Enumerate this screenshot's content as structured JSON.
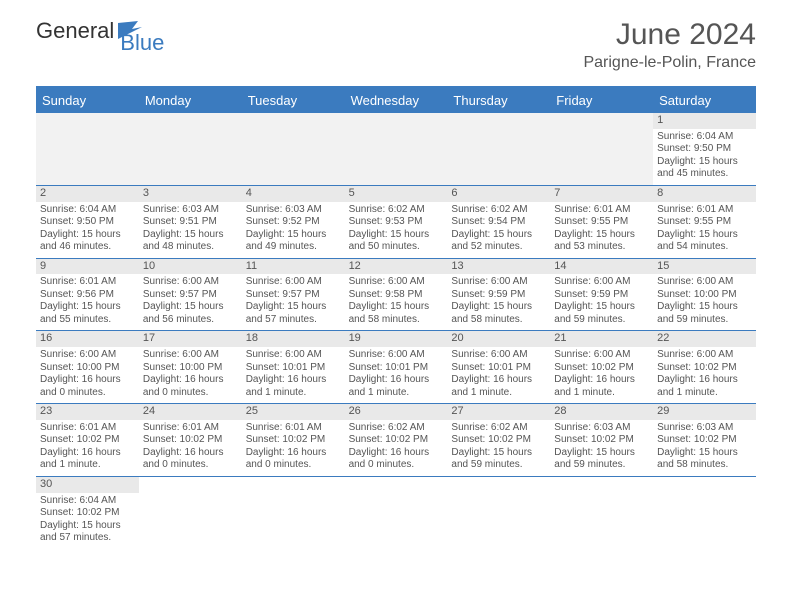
{
  "logo": {
    "part1": "General",
    "part2": "Blue"
  },
  "title": "June 2024",
  "subtitle": "Parigne-le-Polin, France",
  "colors": {
    "header_blue": "#3b7bbf",
    "row_alt": "#e9e9e9",
    "empty_cell": "#f2f2f2",
    "text": "#555"
  },
  "days_of_week": [
    "Sunday",
    "Monday",
    "Tuesday",
    "Wednesday",
    "Thursday",
    "Friday",
    "Saturday"
  ],
  "weeks": [
    [
      {
        "empty": true
      },
      {
        "empty": true
      },
      {
        "empty": true
      },
      {
        "empty": true
      },
      {
        "empty": true
      },
      {
        "empty": true
      },
      {
        "day": "1",
        "sunrise": "Sunrise: 6:04 AM",
        "sunset": "Sunset: 9:50 PM",
        "daylight1": "Daylight: 15 hours",
        "daylight2": "and 45 minutes."
      }
    ],
    [
      {
        "day": "2",
        "sunrise": "Sunrise: 6:04 AM",
        "sunset": "Sunset: 9:50 PM",
        "daylight1": "Daylight: 15 hours",
        "daylight2": "and 46 minutes."
      },
      {
        "day": "3",
        "sunrise": "Sunrise: 6:03 AM",
        "sunset": "Sunset: 9:51 PM",
        "daylight1": "Daylight: 15 hours",
        "daylight2": "and 48 minutes."
      },
      {
        "day": "4",
        "sunrise": "Sunrise: 6:03 AM",
        "sunset": "Sunset: 9:52 PM",
        "daylight1": "Daylight: 15 hours",
        "daylight2": "and 49 minutes."
      },
      {
        "day": "5",
        "sunrise": "Sunrise: 6:02 AM",
        "sunset": "Sunset: 9:53 PM",
        "daylight1": "Daylight: 15 hours",
        "daylight2": "and 50 minutes."
      },
      {
        "day": "6",
        "sunrise": "Sunrise: 6:02 AM",
        "sunset": "Sunset: 9:54 PM",
        "daylight1": "Daylight: 15 hours",
        "daylight2": "and 52 minutes."
      },
      {
        "day": "7",
        "sunrise": "Sunrise: 6:01 AM",
        "sunset": "Sunset: 9:55 PM",
        "daylight1": "Daylight: 15 hours",
        "daylight2": "and 53 minutes."
      },
      {
        "day": "8",
        "sunrise": "Sunrise: 6:01 AM",
        "sunset": "Sunset: 9:55 PM",
        "daylight1": "Daylight: 15 hours",
        "daylight2": "and 54 minutes."
      }
    ],
    [
      {
        "day": "9",
        "sunrise": "Sunrise: 6:01 AM",
        "sunset": "Sunset: 9:56 PM",
        "daylight1": "Daylight: 15 hours",
        "daylight2": "and 55 minutes."
      },
      {
        "day": "10",
        "sunrise": "Sunrise: 6:00 AM",
        "sunset": "Sunset: 9:57 PM",
        "daylight1": "Daylight: 15 hours",
        "daylight2": "and 56 minutes."
      },
      {
        "day": "11",
        "sunrise": "Sunrise: 6:00 AM",
        "sunset": "Sunset: 9:57 PM",
        "daylight1": "Daylight: 15 hours",
        "daylight2": "and 57 minutes."
      },
      {
        "day": "12",
        "sunrise": "Sunrise: 6:00 AM",
        "sunset": "Sunset: 9:58 PM",
        "daylight1": "Daylight: 15 hours",
        "daylight2": "and 58 minutes."
      },
      {
        "day": "13",
        "sunrise": "Sunrise: 6:00 AM",
        "sunset": "Sunset: 9:59 PM",
        "daylight1": "Daylight: 15 hours",
        "daylight2": "and 58 minutes."
      },
      {
        "day": "14",
        "sunrise": "Sunrise: 6:00 AM",
        "sunset": "Sunset: 9:59 PM",
        "daylight1": "Daylight: 15 hours",
        "daylight2": "and 59 minutes."
      },
      {
        "day": "15",
        "sunrise": "Sunrise: 6:00 AM",
        "sunset": "Sunset: 10:00 PM",
        "daylight1": "Daylight: 15 hours",
        "daylight2": "and 59 minutes."
      }
    ],
    [
      {
        "day": "16",
        "sunrise": "Sunrise: 6:00 AM",
        "sunset": "Sunset: 10:00 PM",
        "daylight1": "Daylight: 16 hours",
        "daylight2": "and 0 minutes."
      },
      {
        "day": "17",
        "sunrise": "Sunrise: 6:00 AM",
        "sunset": "Sunset: 10:00 PM",
        "daylight1": "Daylight: 16 hours",
        "daylight2": "and 0 minutes."
      },
      {
        "day": "18",
        "sunrise": "Sunrise: 6:00 AM",
        "sunset": "Sunset: 10:01 PM",
        "daylight1": "Daylight: 16 hours",
        "daylight2": "and 1 minute."
      },
      {
        "day": "19",
        "sunrise": "Sunrise: 6:00 AM",
        "sunset": "Sunset: 10:01 PM",
        "daylight1": "Daylight: 16 hours",
        "daylight2": "and 1 minute."
      },
      {
        "day": "20",
        "sunrise": "Sunrise: 6:00 AM",
        "sunset": "Sunset: 10:01 PM",
        "daylight1": "Daylight: 16 hours",
        "daylight2": "and 1 minute."
      },
      {
        "day": "21",
        "sunrise": "Sunrise: 6:00 AM",
        "sunset": "Sunset: 10:02 PM",
        "daylight1": "Daylight: 16 hours",
        "daylight2": "and 1 minute."
      },
      {
        "day": "22",
        "sunrise": "Sunrise: 6:00 AM",
        "sunset": "Sunset: 10:02 PM",
        "daylight1": "Daylight: 16 hours",
        "daylight2": "and 1 minute."
      }
    ],
    [
      {
        "day": "23",
        "sunrise": "Sunrise: 6:01 AM",
        "sunset": "Sunset: 10:02 PM",
        "daylight1": "Daylight: 16 hours",
        "daylight2": "and 1 minute."
      },
      {
        "day": "24",
        "sunrise": "Sunrise: 6:01 AM",
        "sunset": "Sunset: 10:02 PM",
        "daylight1": "Daylight: 16 hours",
        "daylight2": "and 0 minutes."
      },
      {
        "day": "25",
        "sunrise": "Sunrise: 6:01 AM",
        "sunset": "Sunset: 10:02 PM",
        "daylight1": "Daylight: 16 hours",
        "daylight2": "and 0 minutes."
      },
      {
        "day": "26",
        "sunrise": "Sunrise: 6:02 AM",
        "sunset": "Sunset: 10:02 PM",
        "daylight1": "Daylight: 16 hours",
        "daylight2": "and 0 minutes."
      },
      {
        "day": "27",
        "sunrise": "Sunrise: 6:02 AM",
        "sunset": "Sunset: 10:02 PM",
        "daylight1": "Daylight: 15 hours",
        "daylight2": "and 59 minutes."
      },
      {
        "day": "28",
        "sunrise": "Sunrise: 6:03 AM",
        "sunset": "Sunset: 10:02 PM",
        "daylight1": "Daylight: 15 hours",
        "daylight2": "and 59 minutes."
      },
      {
        "day": "29",
        "sunrise": "Sunrise: 6:03 AM",
        "sunset": "Sunset: 10:02 PM",
        "daylight1": "Daylight: 15 hours",
        "daylight2": "and 58 minutes."
      }
    ],
    [
      {
        "day": "30",
        "sunrise": "Sunrise: 6:04 AM",
        "sunset": "Sunset: 10:02 PM",
        "daylight1": "Daylight: 15 hours",
        "daylight2": "and 57 minutes."
      },
      {
        "empty": true
      },
      {
        "empty": true
      },
      {
        "empty": true
      },
      {
        "empty": true
      },
      {
        "empty": true
      },
      {
        "empty": true
      }
    ]
  ]
}
